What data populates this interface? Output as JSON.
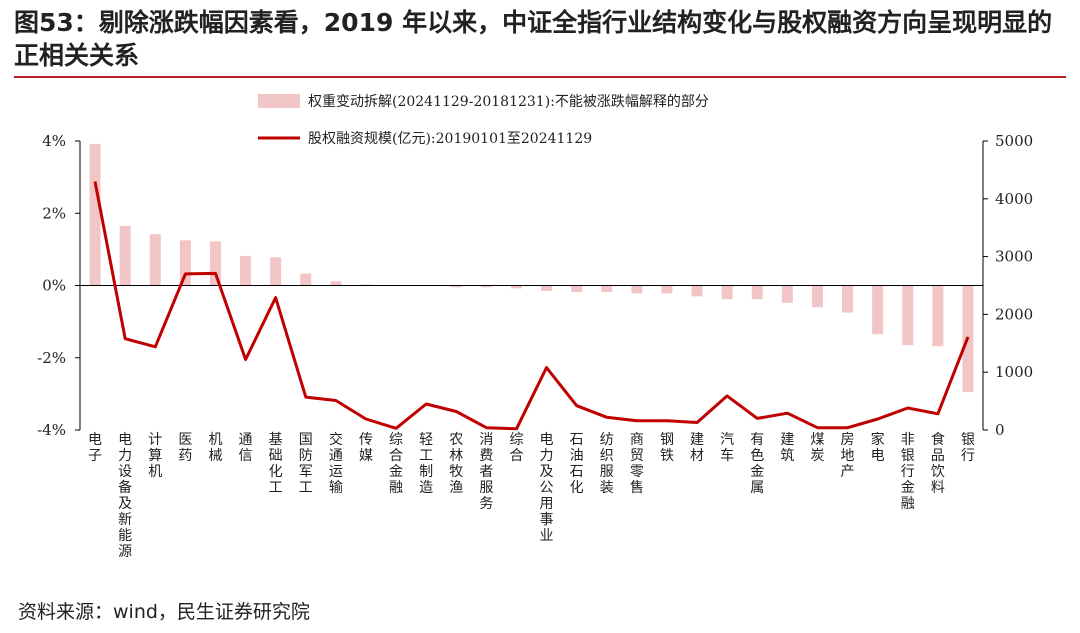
{
  "title": "图53：剔除涨跌幅因素看，2019 年以来，中证全指行业结构变化与股权融资方向呈现明显的正相关关系",
  "source": "资料来源：wind，民生证券研究院",
  "colors": {
    "bar": "#f2c6c6",
    "line": "#c00000",
    "axis": "#000000"
  },
  "chart_data": {
    "type": "bar+line",
    "categories": [
      "电子",
      "电力设备及新能源",
      "计算机",
      "医药",
      "机械",
      "通信",
      "基础化工",
      "国防军工",
      "交通运输",
      "传媒",
      "综合金融",
      "轻工制造",
      "农林牧渔",
      "消费者服务",
      "综合",
      "电力及公用事业",
      "石油石化",
      "纺织服装",
      "商贸零售",
      "钢铁",
      "建材",
      "汽车",
      "有色金属",
      "建筑",
      "煤炭",
      "房地产",
      "家电",
      "非银行金融",
      "食品饮料",
      "银行"
    ],
    "series": [
      {
        "name": "权重变动拆解(20241129-20181231):不能被涨跌幅解释的部分",
        "type": "bar",
        "axis": "left",
        "values": [
          3.92,
          1.65,
          1.42,
          1.25,
          1.22,
          0.82,
          0.78,
          0.33,
          0.12,
          0.03,
          0.0,
          0.0,
          -0.05,
          -0.05,
          -0.08,
          -0.15,
          -0.18,
          -0.18,
          -0.22,
          -0.22,
          -0.3,
          -0.38,
          -0.38,
          -0.48,
          -0.6,
          -0.75,
          -1.35,
          -1.65,
          -1.68,
          -2.95
        ]
      },
      {
        "name": "股权融资规模(亿元):20190101至20241129",
        "type": "line",
        "axis": "right",
        "values": [
          4300,
          1580,
          1440,
          2700,
          2710,
          1220,
          2290,
          570,
          510,
          190,
          30,
          450,
          320,
          40,
          20,
          1080,
          420,
          220,
          160,
          160,
          130,
          590,
          200,
          290,
          40,
          40,
          190,
          380,
          280,
          1610
        ]
      }
    ],
    "ylim_left": [
      -4,
      4
    ],
    "yticks_left": [
      "4%",
      "2%",
      "0%",
      "-2%",
      "-4%"
    ],
    "ylim_right": [
      0,
      5000
    ],
    "yticks_right": [
      "5000",
      "4000",
      "3000",
      "2000",
      "1000",
      "0"
    ]
  }
}
